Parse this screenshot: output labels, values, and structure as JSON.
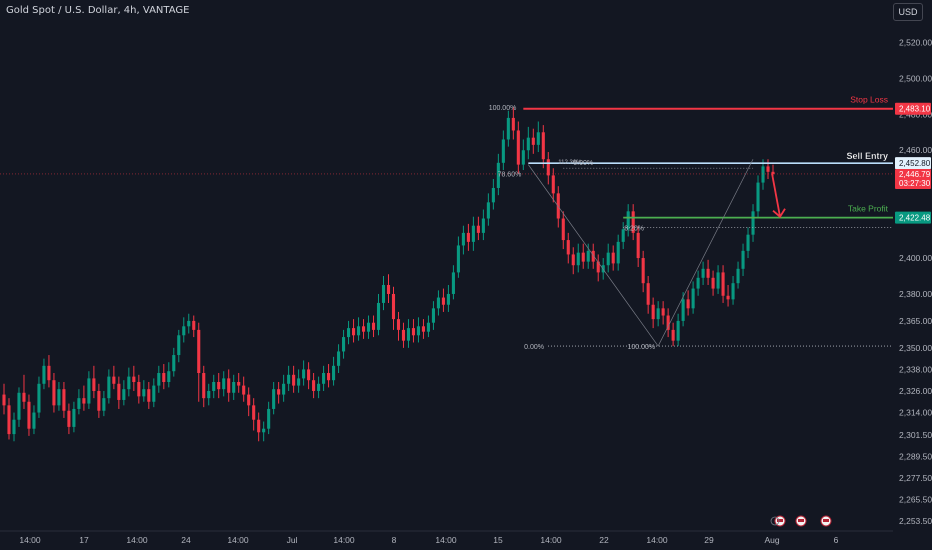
{
  "header": {
    "title": "Gold Spot / U.S. Dollar, 4h, VANTAGE"
  },
  "currency_button": {
    "label": "USD"
  },
  "chart_data": {
    "type": "candlestick",
    "y_axis": {
      "ylim": [
        2247.5,
        2532.5
      ],
      "ticks": [
        2253.5,
        2265.5,
        2277.5,
        2289.5,
        2301.5,
        2314.0,
        2326.0,
        2338.0,
        2350.0,
        2365.0,
        2380.0,
        2400.0,
        2420.0,
        2440.0,
        2460.0,
        2480.0,
        2500.0,
        2520.0
      ],
      "tick_labels": [
        "2,253.50",
        "2,265.50",
        "2,277.50",
        "2,289.50",
        "2,301.50",
        "2,314.00",
        "2,326.00",
        "2,338.00",
        "2,350.00",
        "2,365.00",
        "2,380.00",
        "2,400.00",
        "",
        "",
        "2,460.00",
        "2,480.00",
        "2,500.00",
        "2,520.00"
      ]
    },
    "x_axis": {
      "tick_labels": [
        "14:00",
        "17",
        "14:00",
        "24",
        "14:00",
        "Jul",
        "14:00",
        "8",
        "14:00",
        "15",
        "14:00",
        "22",
        "14:00",
        "29",
        "Aug",
        "6"
      ]
    },
    "price_tags": [
      {
        "name": "stop-loss",
        "value": 2483.1,
        "label": "2,483.10",
        "color": "#f23645"
      },
      {
        "name": "sell-entry",
        "value": 2452.8,
        "label": "2,452.80",
        "color": "#e3f2fd"
      },
      {
        "name": "current-price",
        "value": 2446.79,
        "label": "2,446.79",
        "sub_label": "03:27:30",
        "color": "#f23645"
      },
      {
        "name": "take-profit",
        "value": 2422.48,
        "label": "2,422.48",
        "color": "#089981"
      }
    ],
    "annotations": {
      "stop_loss": {
        "text": "Stop Loss",
        "color": "#f23645"
      },
      "sell_entry": {
        "text": "Sell Entry",
        "color": "#ffffff"
      },
      "take_profit": {
        "text": "Take Profit",
        "color": "#4caf50"
      },
      "fib_left": {
        "level_100": "100.00%",
        "level_786": "78.60%",
        "level_0": "0.00%",
        "level_11236": "112.36%"
      },
      "fib_right": {
        "level_0": "0.00%",
        "level_8": "8.20%",
        "level_100": "100.00%"
      }
    },
    "candles": [
      [
        2324,
        2318,
        2330,
        2313
      ],
      [
        2318,
        2302,
        2322,
        2299
      ],
      [
        2302,
        2310,
        2314,
        2298
      ],
      [
        2310,
        2325,
        2328,
        2306
      ],
      [
        2325,
        2320,
        2335,
        2316
      ],
      [
        2320,
        2305,
        2324,
        2301
      ],
      [
        2305,
        2314,
        2318,
        2302
      ],
      [
        2314,
        2330,
        2334,
        2311
      ],
      [
        2330,
        2340,
        2344,
        2327
      ],
      [
        2340,
        2332,
        2346,
        2328
      ],
      [
        2332,
        2318,
        2336,
        2314
      ],
      [
        2318,
        2327,
        2331,
        2315
      ],
      [
        2327,
        2315,
        2331,
        2311
      ],
      [
        2315,
        2306,
        2319,
        2302
      ],
      [
        2306,
        2316,
        2320,
        2303
      ],
      [
        2316,
        2322,
        2327,
        2313
      ],
      [
        2322,
        2319,
        2329,
        2315
      ],
      [
        2319,
        2333,
        2337,
        2316
      ],
      [
        2333,
        2326,
        2340,
        2322
      ],
      [
        2326,
        2315,
        2330,
        2311
      ],
      [
        2315,
        2322,
        2326,
        2312
      ],
      [
        2322,
        2334,
        2338,
        2319
      ],
      [
        2334,
        2330,
        2340,
        2327
      ],
      [
        2330,
        2321,
        2334,
        2316
      ],
      [
        2321,
        2327,
        2332,
        2318
      ],
      [
        2327,
        2334,
        2339,
        2323
      ],
      [
        2334,
        2331,
        2340,
        2326
      ],
      [
        2331,
        2323,
        2335,
        2319
      ],
      [
        2323,
        2327,
        2332,
        2320
      ],
      [
        2327,
        2320,
        2331,
        2316
      ],
      [
        2320,
        2329,
        2333,
        2317
      ],
      [
        2329,
        2336,
        2340,
        2325
      ],
      [
        2336,
        2331,
        2341,
        2327
      ],
      [
        2331,
        2337,
        2342,
        2328
      ],
      [
        2337,
        2346,
        2350,
        2334
      ],
      [
        2346,
        2357,
        2360,
        2342
      ],
      [
        2357,
        2362,
        2367,
        2353
      ],
      [
        2362,
        2365,
        2369,
        2358
      ],
      [
        2365,
        2360,
        2368,
        2356
      ],
      [
        2360,
        2336,
        2364,
        2320
      ],
      [
        2336,
        2322,
        2340,
        2317
      ],
      [
        2322,
        2326,
        2330,
        2318
      ],
      [
        2326,
        2331,
        2335,
        2322
      ],
      [
        2331,
        2327,
        2336,
        2322
      ],
      [
        2327,
        2333,
        2337,
        2323
      ],
      [
        2333,
        2325,
        2338,
        2320
      ],
      [
        2325,
        2331,
        2335,
        2321
      ],
      [
        2331,
        2329,
        2336,
        2325
      ],
      [
        2329,
        2324,
        2334,
        2320
      ],
      [
        2324,
        2318,
        2328,
        2312
      ],
      [
        2318,
        2310,
        2322,
        2304
      ],
      [
        2310,
        2303,
        2314,
        2298
      ],
      [
        2303,
        2305,
        2309,
        2298
      ],
      [
        2305,
        2316,
        2320,
        2302
      ],
      [
        2316,
        2327,
        2331,
        2313
      ],
      [
        2327,
        2324,
        2331,
        2319
      ],
      [
        2324,
        2330,
        2335,
        2320
      ],
      [
        2330,
        2335,
        2340,
        2326
      ],
      [
        2335,
        2329,
        2340,
        2325
      ],
      [
        2329,
        2333,
        2338,
        2325
      ],
      [
        2333,
        2338,
        2343,
        2329
      ],
      [
        2338,
        2332,
        2342,
        2327
      ],
      [
        2332,
        2326,
        2336,
        2322
      ],
      [
        2326,
        2330,
        2334,
        2322
      ],
      [
        2330,
        2336,
        2340,
        2326
      ],
      [
        2336,
        2332,
        2341,
        2328
      ],
      [
        2332,
        2340,
        2345,
        2329
      ],
      [
        2340,
        2348,
        2352,
        2336
      ],
      [
        2348,
        2356,
        2360,
        2344
      ],
      [
        2356,
        2361,
        2365,
        2352
      ],
      [
        2361,
        2357,
        2366,
        2353
      ],
      [
        2357,
        2362,
        2367,
        2354
      ],
      [
        2362,
        2359,
        2366,
        2355
      ],
      [
        2359,
        2364,
        2368,
        2355
      ],
      [
        2364,
        2360,
        2368,
        2356
      ],
      [
        2360,
        2375,
        2380,
        2357
      ],
      [
        2375,
        2385,
        2390,
        2371
      ],
      [
        2385,
        2380,
        2391,
        2375
      ],
      [
        2380,
        2366,
        2384,
        2360
      ],
      [
        2366,
        2360,
        2370,
        2354
      ],
      [
        2360,
        2354,
        2364,
        2350
      ],
      [
        2354,
        2361,
        2366,
        2350
      ],
      [
        2361,
        2357,
        2366,
        2353
      ],
      [
        2357,
        2362,
        2367,
        2353
      ],
      [
        2362,
        2359,
        2366,
        2355
      ],
      [
        2359,
        2364,
        2368,
        2356
      ],
      [
        2364,
        2372,
        2376,
        2360
      ],
      [
        2372,
        2378,
        2382,
        2368
      ],
      [
        2378,
        2374,
        2383,
        2370
      ],
      [
        2374,
        2380,
        2385,
        2370
      ],
      [
        2380,
        2392,
        2396,
        2377
      ],
      [
        2392,
        2407,
        2412,
        2389
      ],
      [
        2407,
        2414,
        2418,
        2402
      ],
      [
        2414,
        2409,
        2419,
        2404
      ],
      [
        2409,
        2418,
        2423,
        2404
      ],
      [
        2418,
        2414,
        2423,
        2410
      ],
      [
        2414,
        2422,
        2427,
        2410
      ],
      [
        2422,
        2431,
        2436,
        2418
      ],
      [
        2431,
        2439,
        2444,
        2427
      ],
      [
        2439,
        2453,
        2458,
        2435
      ],
      [
        2453,
        2466,
        2471,
        2449
      ],
      [
        2466,
        2478,
        2482,
        2462
      ],
      [
        2478,
        2471,
        2484,
        2466
      ],
      [
        2471,
        2452,
        2476,
        2447
      ],
      [
        2452,
        2460,
        2466,
        2449
      ],
      [
        2460,
        2467,
        2473,
        2455
      ],
      [
        2467,
        2463,
        2472,
        2458
      ],
      [
        2463,
        2470,
        2476,
        2459
      ],
      [
        2470,
        2455,
        2474,
        2450
      ],
      [
        2455,
        2446,
        2459,
        2441
      ],
      [
        2446,
        2436,
        2450,
        2431
      ],
      [
        2436,
        2422,
        2440,
        2417
      ],
      [
        2422,
        2410,
        2426,
        2405
      ],
      [
        2410,
        2402,
        2414,
        2397
      ],
      [
        2402,
        2396,
        2406,
        2391
      ],
      [
        2396,
        2403,
        2408,
        2392
      ],
      [
        2403,
        2398,
        2408,
        2394
      ],
      [
        2398,
        2404,
        2408,
        2394
      ],
      [
        2404,
        2398,
        2408,
        2394
      ],
      [
        2398,
        2392,
        2402,
        2387
      ],
      [
        2392,
        2396,
        2400,
        2388
      ],
      [
        2396,
        2403,
        2408,
        2392
      ],
      [
        2403,
        2397,
        2407,
        2393
      ],
      [
        2397,
        2409,
        2413,
        2393
      ],
      [
        2409,
        2416,
        2420,
        2405
      ],
      [
        2416,
        2426,
        2430,
        2412
      ],
      [
        2426,
        2414,
        2430,
        2410
      ],
      [
        2414,
        2400,
        2418,
        2395
      ],
      [
        2400,
        2386,
        2404,
        2381
      ],
      [
        2386,
        2374,
        2390,
        2369
      ],
      [
        2374,
        2366,
        2378,
        2361
      ],
      [
        2366,
        2372,
        2376,
        2362
      ],
      [
        2372,
        2368,
        2376,
        2363
      ],
      [
        2368,
        2360,
        2372,
        2356
      ],
      [
        2360,
        2354,
        2364,
        2351
      ],
      [
        2354,
        2365,
        2369,
        2351
      ],
      [
        2365,
        2377,
        2381,
        2362
      ],
      [
        2377,
        2372,
        2382,
        2368
      ],
      [
        2372,
        2383,
        2387,
        2369
      ],
      [
        2383,
        2389,
        2393,
        2379
      ],
      [
        2389,
        2394,
        2398,
        2385
      ],
      [
        2394,
        2389,
        2399,
        2385
      ],
      [
        2389,
        2383,
        2393,
        2379
      ],
      [
        2383,
        2392,
        2396,
        2380
      ],
      [
        2392,
        2379,
        2396,
        2375
      ],
      [
        2379,
        2377,
        2385,
        2373
      ],
      [
        2377,
        2386,
        2390,
        2374
      ],
      [
        2386,
        2394,
        2398,
        2383
      ],
      [
        2394,
        2404,
        2408,
        2390
      ],
      [
        2404,
        2413,
        2417,
        2400
      ],
      [
        2413,
        2426,
        2430,
        2409
      ],
      [
        2426,
        2442,
        2446,
        2422
      ],
      [
        2442,
        2451,
        2455,
        2438
      ],
      [
        2451,
        2448,
        2455,
        2444
      ],
      [
        2448,
        2446.79,
        2452,
        2443
      ]
    ]
  }
}
